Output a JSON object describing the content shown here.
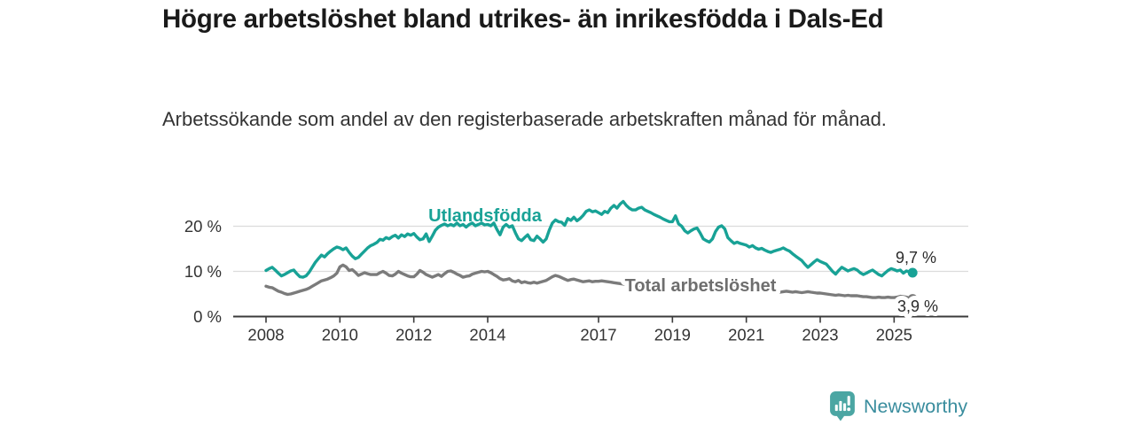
{
  "header": {
    "title": "Högre arbetslöshet bland utrikes- än inrikesfödda i Dals-Ed",
    "subtitle": "Arbetssökande som andel av den registerbaserade arbetskraften månad för månad."
  },
  "footer": {
    "brand": "Newsworthy",
    "logo_icon": "speech-bubble-bar-chart-icon",
    "brand_color": "#3a8d9e",
    "icon_color": "#4ba6a3"
  },
  "chart_data": {
    "type": "line",
    "title": "Högre arbetslöshet bland utrikes- än inrikesfödda i Dals-Ed",
    "subtitle": "Arbetssökande som andel av den registerbaserade arbetskraften månad för månad.",
    "frequency": "monthly",
    "x_start": "2008-01",
    "x_end": "2025-07",
    "x_tick_years": [
      2008,
      2010,
      2012,
      2014,
      2017,
      2019,
      2021,
      2023,
      2025
    ],
    "y_ticks": [
      {
        "value": 0,
        "label": "0 %"
      },
      {
        "value": 10,
        "label": "10 %"
      },
      {
        "value": 20,
        "label": "20 %"
      }
    ],
    "ylim": [
      0,
      26.5
    ],
    "grid": "horizontal",
    "legend": "inline-labels",
    "colors": {
      "grid": "#dcdcdc",
      "axis": "#3b3b3b",
      "tick_text": "#333333"
    },
    "series": [
      {
        "name": "Utlandsfödda",
        "color": "#18a296",
        "end_value": 9.7,
        "end_label": "9,7 %",
        "values": [
          10.2,
          10.6,
          10.9,
          10.3,
          9.6,
          9.0,
          9.3,
          9.7,
          10.1,
          10.3,
          9.5,
          8.8,
          8.7,
          9.0,
          9.8,
          10.9,
          12.0,
          12.8,
          13.6,
          13.2,
          13.9,
          14.5,
          15.0,
          15.4,
          15.2,
          14.8,
          15.2,
          14.2,
          13.4,
          12.8,
          13.1,
          13.8,
          14.5,
          15.2,
          15.7,
          16.0,
          16.4,
          17.1,
          16.9,
          17.5,
          17.2,
          17.7,
          18.0,
          17.4,
          18.1,
          17.7,
          18.3,
          18.0,
          18.4,
          17.6,
          17.0,
          17.2,
          18.3,
          16.6,
          17.8,
          19.1,
          19.8,
          20.2,
          20.5,
          20.1,
          20.4,
          20.1,
          20.7,
          20.1,
          20.4,
          19.8,
          20.4,
          20.7,
          20.1,
          20.4,
          20.7,
          20.3,
          20.4,
          20.1,
          20.7,
          19.3,
          18.1,
          19.8,
          20.4,
          19.8,
          20.1,
          18.5,
          17.2,
          16.8,
          17.5,
          18.1,
          17.0,
          16.8,
          17.8,
          17.2,
          16.5,
          17.2,
          19.1,
          20.7,
          21.4,
          21.0,
          20.9,
          20.2,
          21.7,
          21.3,
          22.0,
          21.2,
          21.7,
          22.4,
          23.3,
          23.6,
          23.2,
          23.4,
          23.0,
          22.6,
          23.3,
          23.0,
          24.0,
          24.6,
          24.0,
          24.9,
          25.5,
          24.6,
          24.0,
          23.6,
          23.6,
          24.0,
          24.2,
          23.6,
          23.3,
          23.0,
          22.6,
          22.3,
          22.0,
          21.6,
          21.3,
          21.0,
          21.0,
          22.3,
          20.5,
          20.0,
          19.0,
          18.5,
          19.0,
          19.4,
          19.6,
          18.5,
          17.2,
          16.8,
          16.5,
          17.2,
          18.8,
          19.8,
          20.1,
          19.4,
          17.5,
          16.8,
          16.2,
          16.5,
          16.2,
          16.0,
          15.8,
          15.4,
          15.7,
          15.2,
          14.9,
          15.1,
          14.7,
          14.4,
          14.2,
          14.5,
          14.7,
          14.9,
          15.2,
          14.8,
          14.5,
          13.9,
          13.4,
          12.9,
          12.4,
          11.6,
          10.9,
          11.5,
          12.1,
          12.6,
          12.2,
          11.9,
          11.6,
          10.8,
          10.0,
          9.4,
          10.2,
          10.9,
          10.5,
          10.1,
          10.4,
          10.6,
          10.3,
          9.7,
          9.3,
          9.6,
          10.0,
          10.3,
          9.8,
          9.3,
          9.0,
          9.6,
          10.2,
          10.6,
          10.4,
          10.1,
          10.3,
          9.6,
          10.1,
          9.9,
          9.7
        ]
      },
      {
        "name": "Total arbetslöshet",
        "color": "#7b7b7b",
        "end_value": 3.9,
        "end_label": "3,9 %",
        "values": [
          6.7,
          6.5,
          6.4,
          6.0,
          5.6,
          5.4,
          5.1,
          4.9,
          5.0,
          5.2,
          5.4,
          5.6,
          5.8,
          6.0,
          6.3,
          6.7,
          7.1,
          7.5,
          7.9,
          8.1,
          8.3,
          8.6,
          9.0,
          9.6,
          11.0,
          11.4,
          11.0,
          10.2,
          10.4,
          9.8,
          9.1,
          9.4,
          9.7,
          9.5,
          9.3,
          9.3,
          9.3,
          9.7,
          10.0,
          9.6,
          9.1,
          9.0,
          9.4,
          10.0,
          9.6,
          9.3,
          9.0,
          8.8,
          8.8,
          9.4,
          10.2,
          9.8,
          9.3,
          9.0,
          8.7,
          9.0,
          9.3,
          8.9,
          9.5,
          10.0,
          10.1,
          9.8,
          9.4,
          9.1,
          8.7,
          8.9,
          9.0,
          9.4,
          9.6,
          9.8,
          10.0,
          9.9,
          10.0,
          9.7,
          9.3,
          8.9,
          8.4,
          8.1,
          8.2,
          8.4,
          7.9,
          7.7,
          8.0,
          7.5,
          7.7,
          7.5,
          7.4,
          7.6,
          7.4,
          7.6,
          7.8,
          8.0,
          8.4,
          8.8,
          9.1,
          8.9,
          8.6,
          8.3,
          8.0,
          8.2,
          8.3,
          8.1,
          7.9,
          7.7,
          7.8,
          7.9,
          7.7,
          7.8,
          7.8,
          7.9,
          7.8,
          7.7,
          7.6,
          7.5,
          7.4,
          7.3,
          7.2,
          7.1,
          7.0,
          7.0,
          6.9,
          6.8,
          6.8,
          6.7,
          6.6,
          6.5,
          6.4,
          6.4,
          6.3,
          6.2,
          6.2,
          6.1,
          6.1,
          6.0,
          6.0,
          5.9,
          5.9,
          5.8,
          5.8,
          5.9,
          5.9,
          5.8,
          5.8,
          5.7,
          5.8,
          5.9,
          6.1,
          6.5,
          6.8,
          6.9,
          6.8,
          6.7,
          6.6,
          6.5,
          6.4,
          6.3,
          6.2,
          6.1,
          6.0,
          5.9,
          5.8,
          5.7,
          5.6,
          5.6,
          5.5,
          5.5,
          5.4,
          5.4,
          5.5,
          5.6,
          5.5,
          5.4,
          5.5,
          5.4,
          5.3,
          5.4,
          5.5,
          5.4,
          5.3,
          5.2,
          5.2,
          5.1,
          5.0,
          4.9,
          4.8,
          4.7,
          4.8,
          4.7,
          4.6,
          4.7,
          4.6,
          4.6,
          4.6,
          4.5,
          4.4,
          4.4,
          4.3,
          4.2,
          4.2,
          4.3,
          4.2,
          4.2,
          4.3,
          4.2,
          4.2,
          4.3,
          4.5,
          4.4,
          4.3,
          4.1,
          3.9
        ]
      }
    ]
  }
}
